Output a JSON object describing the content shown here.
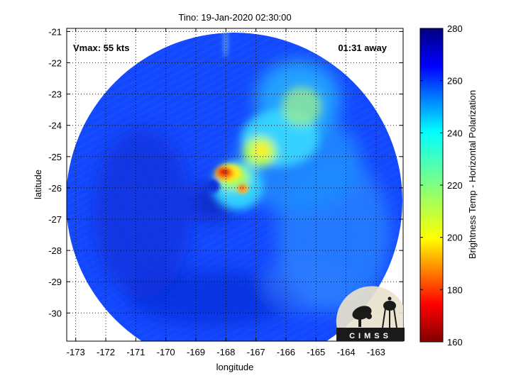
{
  "chart_data": {
    "type": "heatmap",
    "title": "Tino: 19-Jan-2020 02:30:00",
    "xlabel": "longitude",
    "ylabel": "latitude",
    "xlim": [
      -173.3,
      -162.1
    ],
    "ylim": [
      -30.9,
      -20.9
    ],
    "x_ticks": [
      "-173",
      "-172",
      "-171",
      "-170",
      "-169",
      "-168",
      "-167",
      "-166",
      "-165",
      "-164",
      "-163"
    ],
    "y_ticks": [
      "-21",
      "-22",
      "-23",
      "-24",
      "-25",
      "-26",
      "-27",
      "-28",
      "-29",
      "-30"
    ],
    "grid": true,
    "annotations": {
      "vmax": "Vmax: 55 kts",
      "time_away": "01:31 away"
    },
    "colorbar": {
      "label": "Brightness Temp - Horizontal Polarization",
      "range": [
        160,
        280
      ],
      "ticks": [
        "160",
        "180",
        "200",
        "220",
        "240",
        "260",
        "280"
      ]
    },
    "swath_center": [
      -167.7,
      -25.9
    ],
    "warm_features": [
      {
        "lon": -168.1,
        "lat": -25.5,
        "value": 180
      },
      {
        "lon": -167.85,
        "lat": -25.85,
        "value": 192
      },
      {
        "lon": -167.0,
        "lat": -24.7,
        "value": 210
      },
      {
        "lon": -165.5,
        "lat": -23.6,
        "value": 238
      },
      {
        "lon": -166.2,
        "lat": -23.2,
        "value": 242
      }
    ]
  },
  "logo": {
    "text": "CIMSS"
  }
}
